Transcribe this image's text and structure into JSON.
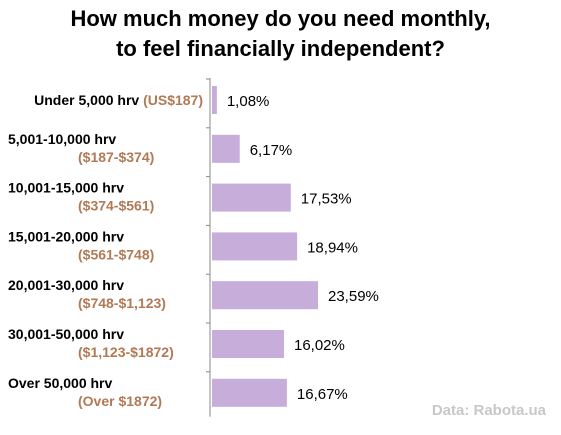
{
  "title": {
    "line1": "How much money do you need monthly,",
    "line2": "to feel financially independent?"
  },
  "source": "Data: Rabota.ua",
  "colors": {
    "bar": "#c7add9",
    "axis": "#8a8a8a",
    "usd_label": "#b07a55",
    "text": "#000000"
  },
  "chart_data": {
    "type": "bar",
    "orientation": "horizontal",
    "categories": [
      {
        "hrv": "Under 5,000 hrv",
        "usd": "(US$187)"
      },
      {
        "hrv": "5,001-10,000 hrv",
        "usd": "($187-$374)"
      },
      {
        "hrv": "10,001-15,000 hrv",
        "usd": "($374-$561)"
      },
      {
        "hrv": "15,001-20,000 hrv",
        "usd": "($561-$748)"
      },
      {
        "hrv": "20,001-30,000 hrv",
        "usd": "($748-$1,123)"
      },
      {
        "hrv": "30,001-50,000 hrv",
        "usd": "($1,123-$1872)"
      },
      {
        "hrv": "Over 50,000 hrv",
        "usd": "(Over $1872)"
      }
    ],
    "values": [
      1.08,
      6.17,
      17.53,
      18.94,
      23.59,
      16.02,
      16.67
    ],
    "value_labels": [
      "1,08%",
      "6,17%",
      "17,53%",
      "18,94%",
      "23,59%",
      "16,02%",
      "16,67%"
    ],
    "xlim": [
      0,
      23.59
    ],
    "grid": false,
    "legend": "none"
  }
}
